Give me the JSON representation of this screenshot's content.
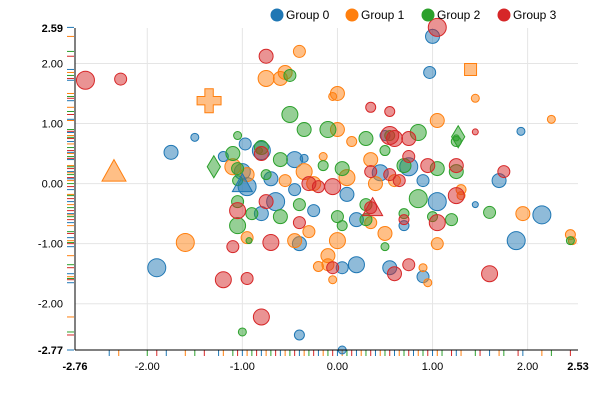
{
  "chart_data": {
    "type": "scatter",
    "title": "",
    "xlabel": "",
    "ylabel": "",
    "xlim": [
      -2.76,
      2.53
    ],
    "ylim": [
      -2.77,
      2.59
    ],
    "x_ticks": [
      -2,
      -1,
      0,
      1,
      2
    ],
    "y_ticks": [
      -2,
      -1,
      0,
      1,
      2
    ],
    "x_tick_labels": [
      "-2.00",
      "-1.00",
      "0.00",
      "1.00",
      "2.00"
    ],
    "y_tick_labels": [
      "-2.00",
      "-1.00",
      "0.00",
      "1.00",
      "2.00"
    ],
    "x_min_label": "-2.76",
    "x_max_label": "2.53",
    "y_min_label": "-2.77",
    "y_max_label": "2.59",
    "grid": true,
    "legend_position": "top-right",
    "series": [
      {
        "name": "Group 0",
        "color": "#1f77b4",
        "points": [
          [
            1.0,
            2.45,
            7
          ],
          [
            0.97,
            1.85,
            6
          ],
          [
            1.93,
            0.87,
            4
          ],
          [
            1.45,
            -0.35,
            3
          ],
          [
            1.7,
            0.05,
            7
          ],
          [
            0.75,
            0.28,
            9
          ],
          [
            0.9,
            0.05,
            6
          ],
          [
            1.05,
            -0.3,
            9
          ],
          [
            2.15,
            -0.52,
            9
          ],
          [
            1.88,
            -0.95,
            9
          ],
          [
            0.55,
            -1.4,
            7
          ],
          [
            0.9,
            -1.55,
            6
          ],
          [
            -1.5,
            0.77,
            4
          ],
          [
            -1.75,
            0.52,
            7
          ],
          [
            -1.9,
            -1.4,
            9
          ],
          [
            -1.0,
            0.2,
            8
          ],
          [
            -1.2,
            0.45,
            5
          ],
          [
            -0.97,
            0.66,
            6
          ],
          [
            -0.8,
            0.55,
            9
          ],
          [
            -0.45,
            0.4,
            8
          ],
          [
            -0.7,
            0.08,
            7
          ],
          [
            -0.45,
            -0.1,
            6
          ],
          [
            -0.25,
            -0.45,
            6
          ],
          [
            -0.8,
            -0.5,
            7
          ],
          [
            -0.65,
            -0.3,
            9
          ],
          [
            -0.4,
            -1.0,
            7
          ],
          [
            -0.4,
            -2.52,
            5
          ],
          [
            0.05,
            -2.77,
            4
          ],
          [
            0.05,
            -1.4,
            6
          ],
          [
            0.1,
            -0.18,
            7
          ],
          [
            0.2,
            -0.6,
            7
          ],
          [
            0.2,
            -1.35,
            8
          ],
          [
            0.5,
            0.8,
            5
          ],
          [
            0.45,
            0.18,
            8
          ],
          [
            0.7,
            -0.7,
            5
          ],
          [
            -0.35,
            0.42,
            4
          ],
          [
            -0.95,
            -0.05,
            9
          ]
        ]
      },
      {
        "name": "Group 1",
        "color": "#ff7f0e",
        "points": [
          [
            -0.75,
            1.75,
            8
          ],
          [
            -0.55,
            1.85,
            7
          ],
          [
            -0.6,
            1.75,
            7
          ],
          [
            -0.4,
            2.2,
            6
          ],
          [
            0.0,
            1.5,
            7
          ],
          [
            -0.05,
            1.45,
            4
          ],
          [
            1.05,
            1.05,
            7
          ],
          [
            1.45,
            1.42,
            4
          ],
          [
            2.25,
            1.07,
            4
          ],
          [
            0.0,
            0.9,
            7
          ],
          [
            0.15,
            0.7,
            5
          ],
          [
            -0.35,
            0.2,
            8
          ],
          [
            -0.55,
            0.05,
            6
          ],
          [
            -0.25,
            0.0,
            7
          ],
          [
            0.35,
            0.4,
            7
          ],
          [
            -0.15,
            0.45,
            4
          ],
          [
            0.1,
            0.1,
            8
          ],
          [
            0.4,
            0.0,
            7
          ],
          [
            -1.1,
            0.28,
            8
          ],
          [
            -0.95,
            0.15,
            7
          ],
          [
            -1.6,
            -0.98,
            9
          ],
          [
            -0.95,
            -0.9,
            6
          ],
          [
            -0.3,
            -0.8,
            6
          ],
          [
            -0.45,
            -0.95,
            7
          ],
          [
            0.0,
            -0.95,
            8
          ],
          [
            -0.1,
            -1.2,
            7
          ],
          [
            -0.1,
            -1.35,
            6
          ],
          [
            0.35,
            -0.65,
            6
          ],
          [
            0.5,
            -0.83,
            7
          ],
          [
            0.9,
            -1.4,
            4
          ],
          [
            0.95,
            -1.65,
            4
          ],
          [
            1.05,
            -1.0,
            6
          ],
          [
            1.3,
            -0.1,
            5
          ],
          [
            1.95,
            -0.5,
            7
          ],
          [
            2.45,
            -0.85,
            5
          ],
          [
            2.47,
            -0.95,
            4
          ],
          [
            -0.05,
            -1.6,
            4
          ],
          [
            -0.2,
            -1.38,
            5
          ],
          [
            1.3,
            -0.2,
            4
          ],
          [
            0.6,
            0.05,
            6
          ]
        ]
      },
      {
        "name": "Group 2",
        "color": "#2ca02c",
        "points": [
          [
            -0.5,
            1.8,
            6
          ],
          [
            -0.5,
            1.15,
            8
          ],
          [
            -0.35,
            0.9,
            7
          ],
          [
            -0.1,
            0.9,
            8
          ],
          [
            0.3,
            0.75,
            7
          ],
          [
            0.55,
            0.8,
            5
          ],
          [
            0.85,
            0.85,
            8
          ],
          [
            1.25,
            0.7,
            5
          ],
          [
            -1.05,
            0.8,
            4
          ],
          [
            -0.8,
            0.6,
            7
          ],
          [
            -0.6,
            0.4,
            7
          ],
          [
            -0.15,
            0.3,
            5
          ],
          [
            0.05,
            0.25,
            7
          ],
          [
            0.5,
            0.55,
            5
          ],
          [
            0.7,
            0.3,
            7
          ],
          [
            1.05,
            0.25,
            7
          ],
          [
            1.25,
            0.2,
            7
          ],
          [
            -1.1,
            0.5,
            7
          ],
          [
            -1.05,
            0.25,
            6
          ],
          [
            -1.05,
            0.05,
            5
          ],
          [
            -0.75,
            0.15,
            5
          ],
          [
            -1.05,
            -0.3,
            6
          ],
          [
            -1.05,
            -0.7,
            8
          ],
          [
            -0.9,
            -0.5,
            6
          ],
          [
            -0.6,
            -0.55,
            7
          ],
          [
            -0.4,
            -0.35,
            6
          ],
          [
            0.0,
            -0.55,
            6
          ],
          [
            0.05,
            -0.7,
            5
          ],
          [
            0.3,
            -0.6,
            6
          ],
          [
            0.3,
            -0.35,
            6
          ],
          [
            0.7,
            -0.5,
            5
          ],
          [
            0.85,
            -0.25,
            9
          ],
          [
            1.0,
            -0.55,
            5
          ],
          [
            1.2,
            -0.6,
            6
          ],
          [
            1.6,
            -0.48,
            6
          ],
          [
            2.45,
            -0.95,
            4
          ],
          [
            0.5,
            -1.05,
            4
          ],
          [
            -1.0,
            -2.47,
            4
          ],
          [
            -0.93,
            -0.95,
            3
          ],
          [
            1.25,
            0.76,
            3
          ],
          [
            -0.82,
            0.55,
            3
          ]
        ]
      },
      {
        "name": "Group 3",
        "color": "#d62728",
        "points": [
          [
            1.05,
            2.6,
            9
          ],
          [
            -0.75,
            2.12,
            7
          ],
          [
            0.35,
            1.27,
            5
          ],
          [
            0.55,
            1.2,
            5
          ],
          [
            1.45,
            0.86,
            3
          ],
          [
            -2.65,
            1.72,
            9
          ],
          [
            -2.28,
            1.74,
            6
          ],
          [
            -0.8,
            0.5,
            7
          ],
          [
            0.6,
            0.75,
            8
          ],
          [
            0.75,
            0.75,
            7
          ],
          [
            0.75,
            0.45,
            6
          ],
          [
            0.95,
            0.3,
            7
          ],
          [
            1.25,
            0.3,
            7
          ],
          [
            0.35,
            0.2,
            6
          ],
          [
            0.55,
            0.15,
            6
          ],
          [
            0.65,
            0.05,
            6
          ],
          [
            -0.3,
            0.0,
            7
          ],
          [
            -0.05,
            -0.05,
            8
          ],
          [
            -0.2,
            -0.05,
            6
          ],
          [
            1.25,
            -0.2,
            8
          ],
          [
            1.75,
            0.2,
            6
          ],
          [
            -1.05,
            -0.45,
            8
          ],
          [
            -0.75,
            -0.3,
            7
          ],
          [
            -0.7,
            -0.98,
            8
          ],
          [
            -1.1,
            -1.05,
            6
          ],
          [
            -0.4,
            -0.65,
            6
          ],
          [
            0.35,
            -0.4,
            6
          ],
          [
            0.7,
            -0.6,
            5
          ],
          [
            1.05,
            -0.65,
            8
          ],
          [
            -1.2,
            -1.6,
            8
          ],
          [
            -0.95,
            -1.58,
            6
          ],
          [
            -0.8,
            -2.22,
            8
          ],
          [
            -0.05,
            -1.4,
            6
          ],
          [
            0.6,
            -1.5,
            7
          ],
          [
            0.75,
            -1.35,
            6
          ],
          [
            1.6,
            -1.5,
            8
          ],
          [
            0.55,
            0.8,
            9
          ]
        ]
      }
    ],
    "special_markers": [
      {
        "series": "Group 1",
        "shape": "cross",
        "x": -1.35,
        "y": 1.38,
        "size": 12
      },
      {
        "series": "Group 1",
        "shape": "square",
        "x": 1.4,
        "y": 1.9,
        "size": 6
      },
      {
        "series": "Group 1",
        "shape": "triangle",
        "x": -2.35,
        "y": 0.2,
        "size": 12
      },
      {
        "series": "Group 2",
        "shape": "diamond",
        "x": -1.3,
        "y": 0.28,
        "size": 11
      },
      {
        "series": "Group 2",
        "shape": "diamond",
        "x": 1.27,
        "y": 0.78,
        "size": 11
      },
      {
        "series": "Group 0",
        "shape": "triangle",
        "x": -1.0,
        "y": 0.0,
        "size": 10
      },
      {
        "series": "Group 3",
        "shape": "triangle",
        "x": 0.37,
        "y": -0.4,
        "size": 10
      }
    ],
    "rug_x": [
      -2.4,
      -2.3,
      -2.0,
      -1.9,
      -1.8,
      -1.6,
      -1.5,
      -1.4,
      -1.25,
      -1.2,
      -1.1,
      -1.05,
      -1.0,
      -0.95,
      -0.9,
      -0.85,
      -0.8,
      -0.75,
      -0.7,
      -0.65,
      -0.6,
      -0.55,
      -0.5,
      -0.45,
      -0.4,
      -0.35,
      -0.3,
      -0.25,
      -0.2,
      -0.15,
      -0.1,
      -0.05,
      0.0,
      0.05,
      0.1,
      0.15,
      0.2,
      0.25,
      0.3,
      0.35,
      0.4,
      0.45,
      0.5,
      0.55,
      0.6,
      0.65,
      0.7,
      0.75,
      0.8,
      0.85,
      0.9,
      0.95,
      1.0,
      1.05,
      1.1,
      1.2,
      1.25,
      1.3,
      1.45,
      1.5,
      1.6,
      1.7,
      1.75,
      1.9,
      1.95,
      2.15,
      2.25,
      2.45
    ],
    "rug_y": [
      2.6,
      2.45,
      2.2,
      2.12,
      1.9,
      1.85,
      1.8,
      1.75,
      1.72,
      1.5,
      1.45,
      1.42,
      1.38,
      1.27,
      1.2,
      1.15,
      1.07,
      1.05,
      0.9,
      0.87,
      0.85,
      0.8,
      0.77,
      0.75,
      0.7,
      0.66,
      0.6,
      0.55,
      0.52,
      0.5,
      0.45,
      0.42,
      0.4,
      0.3,
      0.28,
      0.25,
      0.2,
      0.18,
      0.15,
      0.1,
      0.08,
      0.05,
      0.0,
      -0.05,
      -0.1,
      -0.18,
      -0.2,
      -0.25,
      -0.3,
      -0.35,
      -0.4,
      -0.45,
      -0.5,
      -0.52,
      -0.55,
      -0.6,
      -0.65,
      -0.7,
      -0.8,
      -0.83,
      -0.9,
      -0.95,
      -0.98,
      -1.0,
      -1.05,
      -1.2,
      -1.35,
      -1.4,
      -1.5,
      -1.55,
      -1.58,
      -1.6,
      -1.65,
      -2.22,
      -2.47,
      -2.52,
      -2.77
    ]
  }
}
